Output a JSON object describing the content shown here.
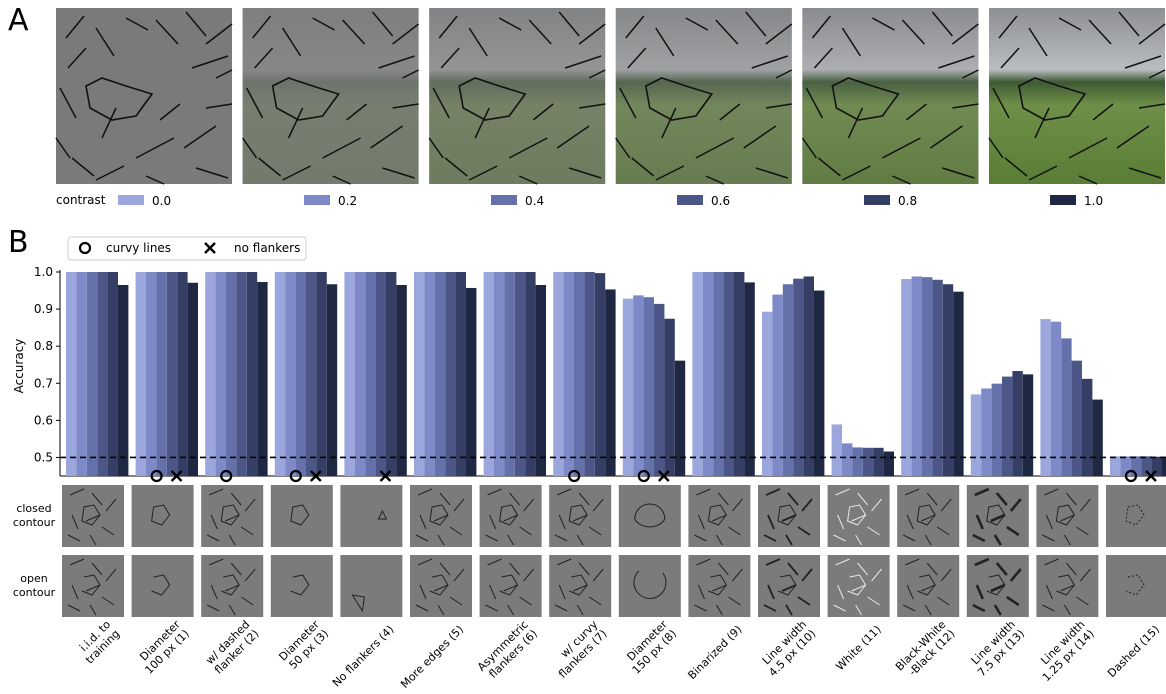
{
  "panels": {
    "a_label": "A",
    "b_label": "B"
  },
  "contrast": {
    "label": "contrast",
    "levels": [
      "0.0",
      "0.2",
      "0.4",
      "0.6",
      "0.8",
      "1.0"
    ],
    "colors": [
      "#9aa6dc",
      "#7e8ac8",
      "#6571aa",
      "#4c5788",
      "#353f65",
      "#1e2842"
    ]
  },
  "markers_legend": {
    "curvy": "curvy lines",
    "noflank": "no flankers"
  },
  "row_labels": {
    "closed": [
      "closed",
      "contour"
    ],
    "open": [
      "open",
      "contour"
    ]
  },
  "chart_data": {
    "type": "bar",
    "ylabel": "Accuracy",
    "ylim": [
      0.45,
      1.0
    ],
    "yticks": [
      "0.5",
      "0.6",
      "0.7",
      "0.8",
      "0.9",
      "1.0"
    ],
    "chance_level": 0.5,
    "categories": [
      "i.i.d. to\ntraining",
      "Diameter\n100 px (1)",
      "w/ dashed\nflanker (2)",
      "Diameter\n50 px (3)",
      "No flankers (4)",
      "More edges (5)",
      "Asymmetric\nflankers (6)",
      "w/ curvy\nflankers (7)",
      "Diameter\n150 px (8)",
      "Binarized (9)",
      "Line width\n4.5 px (10)",
      "White (11)",
      "Black-White\n-Black (12)",
      "Line width\n7.5 px (13)",
      "Line width\n1.25 px (14)",
      "Dashed (15)"
    ],
    "series": [
      {
        "name": "0.0",
        "values": [
          1.0,
          1.0,
          1.0,
          1.0,
          1.0,
          1.0,
          1.0,
          1.0,
          0.928,
          1.0,
          0.893,
          0.589,
          0.981,
          0.67,
          0.873,
          0.503
        ]
      },
      {
        "name": "0.2",
        "values": [
          1.0,
          1.0,
          1.0,
          1.0,
          1.0,
          1.0,
          1.0,
          1.0,
          0.937,
          1.0,
          0.939,
          0.538,
          0.988,
          0.686,
          0.866,
          0.503
        ]
      },
      {
        "name": "0.4",
        "values": [
          1.0,
          1.0,
          1.0,
          1.0,
          1.0,
          1.0,
          1.0,
          1.0,
          0.932,
          1.0,
          0.967,
          0.527,
          0.986,
          0.699,
          0.821,
          0.503
        ]
      },
      {
        "name": "0.6",
        "values": [
          1.0,
          1.0,
          1.0,
          1.0,
          1.0,
          1.0,
          1.0,
          1.0,
          0.914,
          1.0,
          0.982,
          0.526,
          0.979,
          0.718,
          0.761,
          0.503
        ]
      },
      {
        "name": "0.8",
        "values": [
          1.0,
          1.0,
          1.0,
          1.0,
          1.0,
          1.0,
          1.0,
          0.997,
          0.874,
          1.0,
          0.988,
          0.526,
          0.967,
          0.733,
          0.712,
          0.502
        ]
      },
      {
        "name": "1.0",
        "values": [
          0.965,
          0.971,
          0.973,
          0.967,
          0.965,
          0.957,
          0.965,
          0.953,
          0.761,
          0.972,
          0.95,
          0.516,
          0.947,
          0.724,
          0.656,
          0.502
        ]
      }
    ],
    "markers": {
      "curvy_lines": [
        1,
        2,
        3,
        7,
        8,
        15
      ],
      "no_flankers": [
        1,
        3,
        4,
        8,
        15
      ]
    },
    "grid": false
  }
}
